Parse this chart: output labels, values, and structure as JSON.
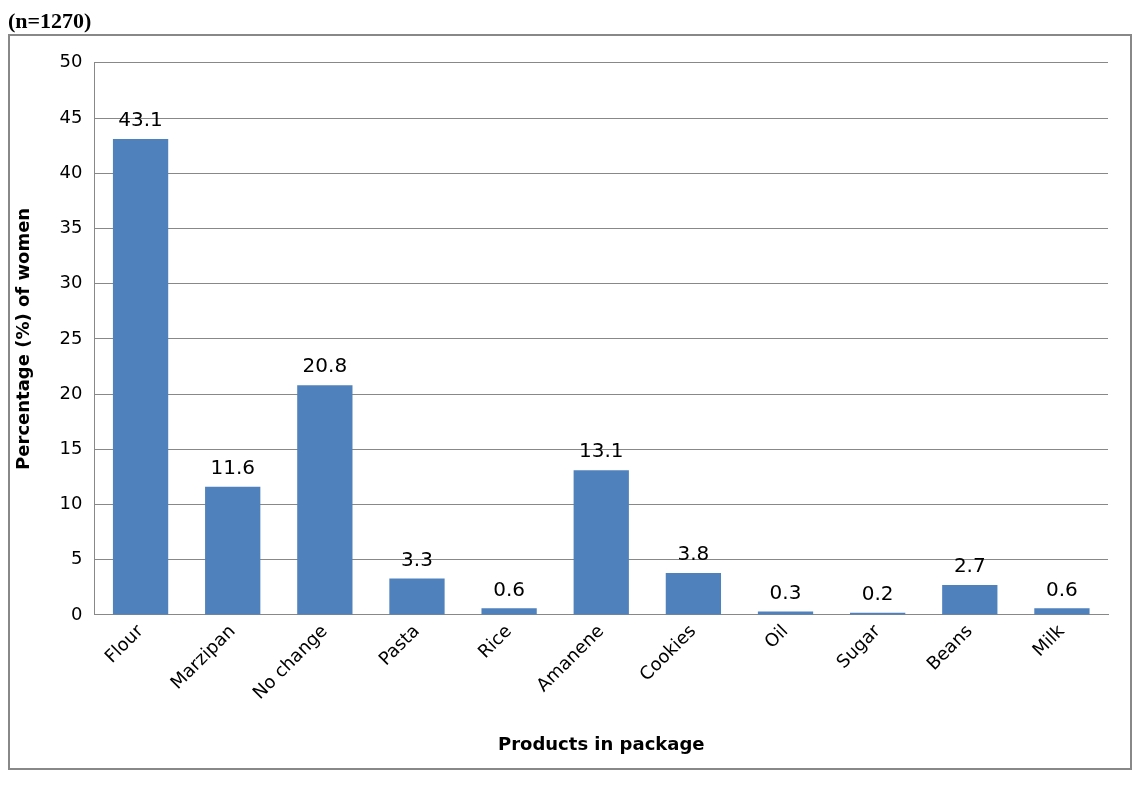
{
  "chart_data": {
    "type": "bar",
    "title": "(n=1270)",
    "xlabel": "Products in package",
    "ylabel": "Percentage (%) of women",
    "categories": [
      "Flour",
      "Marzipan",
      "No change",
      "Pasta",
      "Rice",
      "Amanene",
      "Cookies",
      "Oil",
      "Sugar",
      "Beans",
      "Milk"
    ],
    "values": [
      43.1,
      11.6,
      20.8,
      3.3,
      0.6,
      13.1,
      3.8,
      0.3,
      0.2,
      2.7,
      0.6
    ],
    "color": "#4f81bd",
    "ylim": [
      0,
      50
    ],
    "yticks": [
      0,
      5,
      10,
      15,
      20,
      25,
      30,
      35,
      40,
      45,
      50
    ],
    "grid": "y",
    "data_labels": true,
    "legend": false
  }
}
